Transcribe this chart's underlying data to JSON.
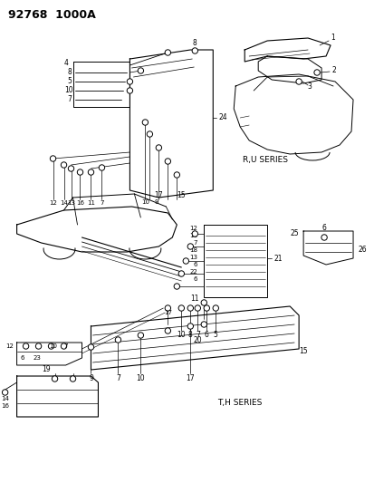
{
  "title": "92768  1000A",
  "background_color": "#ffffff",
  "line_color": "#000000",
  "fig_width": 4.14,
  "fig_height": 5.33,
  "dpi": 100,
  "series_label_ru": "R,U SERIES",
  "series_label_th": "T,H SERIES"
}
